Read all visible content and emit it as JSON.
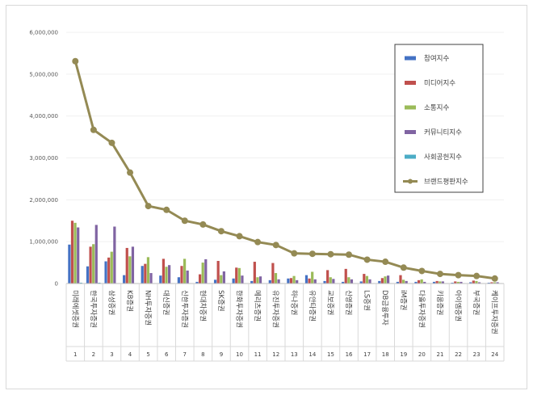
{
  "chart_data": {
    "type": "bar",
    "ylim": [
      0,
      6000000
    ],
    "yticks": [
      "0",
      "1,000,000",
      "2,000,000",
      "3,000,000",
      "4,000,000",
      "5,000,000",
      "6,000,000"
    ],
    "categories": [
      "미래에셋증권",
      "한국투자증권",
      "삼성증권",
      "KB증권",
      "NH투자증권",
      "대신증권",
      "신한투자증권",
      "현대차증권",
      "SK증권",
      "한화투자증권",
      "메리츠증권",
      "유진투자증권",
      "하나증권",
      "유안타증권",
      "교보증권",
      "신영증권",
      "LS증권",
      "DB금융투자",
      "iM증권",
      "다올투자증권",
      "키움증권",
      "아이엠증권",
      "부국증권",
      "케이프투자증권"
    ],
    "ranks": [
      "1",
      "2",
      "3",
      "4",
      "5",
      "6",
      "7",
      "8",
      "9",
      "10",
      "11",
      "12",
      "13",
      "14",
      "15",
      "16",
      "17",
      "18",
      "19",
      "20",
      "21",
      "22",
      "23",
      "24"
    ],
    "series": [
      {
        "name": "참여지수",
        "color": "#4472c4",
        "kind": "bar",
        "values": [
          930000,
          410000,
          530000,
          200000,
          420000,
          190000,
          150000,
          40000,
          90000,
          120000,
          60000,
          80000,
          120000,
          200000,
          60000,
          40000,
          50000,
          60000,
          40000,
          40000,
          40000,
          20000,
          30000,
          20000
        ]
      },
      {
        "name": "미디어지수",
        "color": "#c0504d",
        "kind": "bar",
        "values": [
          1500000,
          880000,
          620000,
          850000,
          470000,
          590000,
          420000,
          220000,
          540000,
          380000,
          520000,
          490000,
          130000,
          120000,
          320000,
          350000,
          230000,
          130000,
          200000,
          80000,
          60000,
          50000,
          70000,
          30000
        ]
      },
      {
        "name": "소통지수",
        "color": "#9bbb59",
        "kind": "bar",
        "values": [
          1450000,
          940000,
          760000,
          650000,
          630000,
          400000,
          590000,
          500000,
          200000,
          370000,
          150000,
          250000,
          180000,
          280000,
          150000,
          150000,
          180000,
          170000,
          90000,
          100000,
          50000,
          40000,
          60000,
          30000
        ]
      },
      {
        "name": "커뮤니티지수",
        "color": "#8064a2",
        "kind": "bar",
        "values": [
          1340000,
          1400000,
          1360000,
          880000,
          250000,
          440000,
          310000,
          580000,
          290000,
          190000,
          170000,
          100000,
          80000,
          100000,
          110000,
          100000,
          100000,
          190000,
          60000,
          40000,
          50000,
          40000,
          30000,
          30000
        ]
      },
      {
        "name": "사회공헌지수",
        "color": "#4bacc6",
        "kind": "bar",
        "values": [
          20000,
          20000,
          10000,
          10000,
          10000,
          10000,
          10000,
          10000,
          10000,
          10000,
          10000,
          10000,
          10000,
          10000,
          10000,
          10000,
          10000,
          10000,
          10000,
          10000,
          10000,
          10000,
          10000,
          10000
        ]
      },
      {
        "name": "브랜드평판지수",
        "color": "#948a54",
        "kind": "line",
        "values": [
          5310000,
          3670000,
          3360000,
          2650000,
          1850000,
          1760000,
          1500000,
          1410000,
          1250000,
          1130000,
          990000,
          920000,
          720000,
          710000,
          700000,
          690000,
          570000,
          520000,
          380000,
          300000,
          230000,
          200000,
          180000,
          120000
        ]
      }
    ]
  }
}
